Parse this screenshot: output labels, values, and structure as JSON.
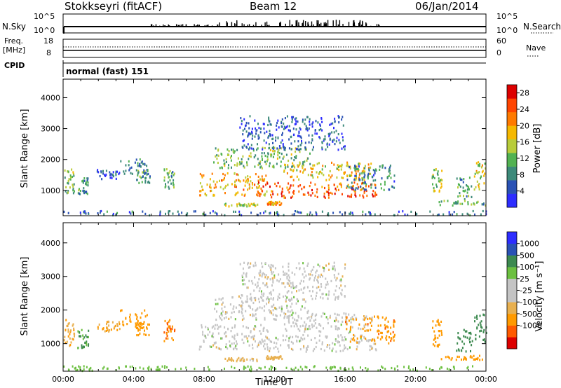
{
  "header": {
    "station": "Stokkseyri (fitACF)",
    "beam": "Beam 12",
    "date": "06/Jan/2014"
  },
  "nsky": {
    "left_label": "N.Sky",
    "left_top_tick": "10^5",
    "left_bottom_tick": "10^0",
    "right_label": "N.Search",
    "right_top_tick": "10^5",
    "right_bottom_tick": "10^0"
  },
  "freq": {
    "left_label_line1": "Freq.",
    "left_label_line2": "[MHz]",
    "left_top_tick": "18",
    "left_bottom_tick": "8",
    "right_label": "Nave",
    "right_top_tick": "60",
    "right_bottom_tick": "0"
  },
  "cpid": {
    "label": "CPID",
    "mode_text": "normal (fast) 151"
  },
  "colors": {
    "power_scale": [
      "#2d2dff",
      "#2a52b5",
      "#3d8a7a",
      "#52b252",
      "#b8cc3a",
      "#f5b800",
      "#ff7a00",
      "#ff4400",
      "#dd0000"
    ],
    "velocity_scale": [
      "#dd0000",
      "#ff5a00",
      "#ff9a00",
      "#e8b050",
      "#c4c4c4",
      "#c4c4c4",
      "#6cc040",
      "#3d8a50",
      "#2a52b5",
      "#2d2dff"
    ],
    "axis": "#000000"
  },
  "chart_data": [
    {
      "type": "heatmap",
      "panel": "power",
      "ylabel": "Slant Range [km]",
      "xlim_hours": [
        0,
        24
      ],
      "ylim_km": [
        180,
        4600
      ],
      "yticks": [
        "1000",
        "2000",
        "3000",
        "4000"
      ],
      "colorbar": {
        "label": "Power [dB]",
        "ticks": [
          "4",
          "8",
          "12",
          "16",
          "20",
          "24",
          "28"
        ],
        "range": [
          0,
          30
        ]
      },
      "echo_regions": [
        {
          "t": [
            0.0,
            0.6
          ],
          "r": [
            900,
            1700
          ],
          "v": 12
        },
        {
          "t": [
            0.8,
            1.4
          ],
          "r": [
            850,
            1400
          ],
          "v": 9
        },
        {
          "t": [
            1.9,
            3.2
          ],
          "r": [
            1350,
            1650
          ],
          "v": 5
        },
        {
          "t": [
            3.2,
            4.8
          ],
          "r": [
            1500,
            2000
          ],
          "v": 8
        },
        {
          "t": [
            4.1,
            4.9
          ],
          "r": [
            1200,
            1650
          ],
          "v": 10
        },
        {
          "t": [
            5.7,
            6.3
          ],
          "r": [
            1050,
            1700
          ],
          "v": 11
        },
        {
          "t": [
            7.7,
            11.6
          ],
          "r": [
            800,
            1550
          ],
          "v": 19
        },
        {
          "t": [
            11.0,
            17.8
          ],
          "r": [
            750,
            1250
          ],
          "v": 24
        },
        {
          "t": [
            12.5,
            17.5
          ],
          "r": [
            1300,
            1900
          ],
          "v": 17
        },
        {
          "t": [
            8.5,
            14.0
          ],
          "r": [
            1700,
            2400
          ],
          "v": 12
        },
        {
          "t": [
            10.0,
            16.0
          ],
          "r": [
            2300,
            3400
          ],
          "v": 5
        },
        {
          "t": [
            16.0,
            18.8
          ],
          "r": [
            1000,
            1800
          ],
          "v": 8
        },
        {
          "t": [
            9.1,
            11.0
          ],
          "r": [
            470,
            560
          ],
          "v": 14
        },
        {
          "t": [
            11.5,
            12.4
          ],
          "r": [
            520,
            620
          ],
          "v": 20
        },
        {
          "t": [
            20.9,
            21.5
          ],
          "r": [
            900,
            1700
          ],
          "v": 14
        },
        {
          "t": [
            22.3,
            23.2
          ],
          "r": [
            700,
            1400
          ],
          "v": 10
        },
        {
          "t": [
            23.3,
            24.0
          ],
          "r": [
            1000,
            1900
          ],
          "v": 16
        },
        {
          "t": [
            21.3,
            24.0
          ],
          "r": [
            500,
            650
          ],
          "v": 11
        },
        {
          "t": [
            0.0,
            24.0
          ],
          "r": [
            180,
            320
          ],
          "v": 6
        }
      ]
    },
    {
      "type": "heatmap",
      "panel": "velocity",
      "ylabel": "Slant Range [km]",
      "xlabel": "Time UT",
      "xticks": [
        "00:00",
        "04:00",
        "08:00",
        "12:00",
        "16:00",
        "20:00",
        "00:00"
      ],
      "xlim_hours": [
        0,
        24
      ],
      "ylim_km": [
        180,
        4600
      ],
      "yticks": [
        "1000",
        "2000",
        "3000",
        "4000"
      ],
      "colorbar": {
        "label": "Velocity [m s⁻¹]",
        "ticks": [
          "1000",
          "500",
          "100",
          "25",
          "-25",
          "-100",
          "-500",
          "-1000"
        ]
      },
      "echo_regions": [
        {
          "t": [
            0.0,
            0.6
          ],
          "r": [
            900,
            1700
          ],
          "v": -100
        },
        {
          "t": [
            0.8,
            1.4
          ],
          "r": [
            850,
            1400
          ],
          "v": 100
        },
        {
          "t": [
            1.9,
            3.2
          ],
          "r": [
            1350,
            1650
          ],
          "v": -100
        },
        {
          "t": [
            3.2,
            4.8
          ],
          "r": [
            1500,
            2000
          ],
          "v": -300
        },
        {
          "t": [
            4.1,
            4.9
          ],
          "r": [
            1200,
            1650
          ],
          "v": -200
        },
        {
          "t": [
            5.7,
            6.3
          ],
          "r": [
            1050,
            1700
          ],
          "v": -500
        },
        {
          "t": [
            7.7,
            11.6
          ],
          "r": [
            800,
            1550
          ],
          "v": 0
        },
        {
          "t": [
            11.0,
            17.8
          ],
          "r": [
            750,
            1250
          ],
          "v": 0
        },
        {
          "t": [
            12.5,
            17.5
          ],
          "r": [
            1300,
            1900
          ],
          "v": 0
        },
        {
          "t": [
            8.5,
            14.0
          ],
          "r": [
            1700,
            2400
          ],
          "v": 0
        },
        {
          "t": [
            10.0,
            16.0
          ],
          "r": [
            2300,
            3400
          ],
          "v": 0
        },
        {
          "t": [
            16.0,
            18.8
          ],
          "r": [
            1000,
            1800
          ],
          "v": -400
        },
        {
          "t": [
            9.1,
            11.0
          ],
          "r": [
            470,
            560
          ],
          "v": -50
        },
        {
          "t": [
            11.5,
            12.4
          ],
          "r": [
            520,
            620
          ],
          "v": -60
        },
        {
          "t": [
            20.9,
            21.5
          ],
          "r": [
            900,
            1700
          ],
          "v": -300
        },
        {
          "t": [
            22.3,
            23.2
          ],
          "r": [
            700,
            1400
          ],
          "v": 200
        },
        {
          "t": [
            23.3,
            24.0
          ],
          "r": [
            1000,
            1900
          ],
          "v": 300
        },
        {
          "t": [
            21.3,
            24.0
          ],
          "r": [
            500,
            650
          ],
          "v": -300
        },
        {
          "t": [
            0.0,
            24.0
          ],
          "r": [
            180,
            320
          ],
          "v": 60
        }
      ]
    }
  ]
}
